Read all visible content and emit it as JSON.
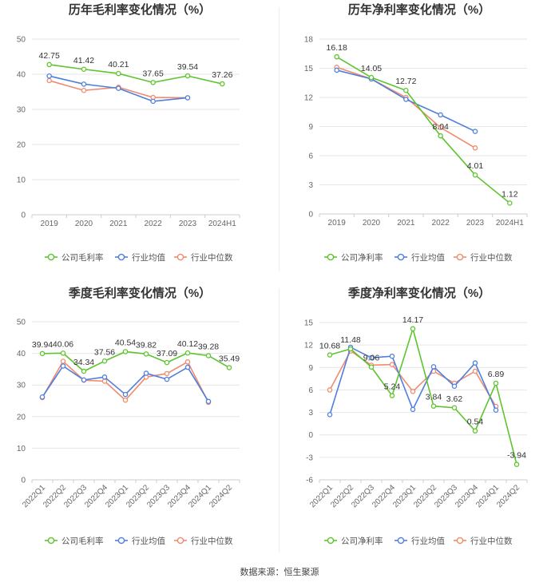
{
  "colors": {
    "company": "#5ec42e",
    "avg": "#4f7fdc",
    "median": "#f08b6e",
    "grid": "#e6e6e6",
    "axis": "#cccccc"
  },
  "legend": {
    "company_gross": "公司毛利率",
    "company_net": "公司净利率",
    "avg": "行业均值",
    "median": "行业中位数"
  },
  "source": "数据来源：恒生聚源",
  "chart_data": [
    {
      "type": "line",
      "title": "历年毛利率变化情况（%）",
      "categories": [
        "2019",
        "2020",
        "2021",
        "2022",
        "2023",
        "2024H1"
      ],
      "ylim": [
        0,
        50
      ],
      "yticks": [
        0,
        10,
        20,
        30,
        40,
        50
      ],
      "rotate_x": false,
      "legend_company": "公司毛利率",
      "series": [
        {
          "name": "公司毛利率",
          "key": "company",
          "values": [
            42.75,
            41.42,
            40.21,
            37.65,
            39.54,
            37.26
          ],
          "labels": [
            "42.75",
            "41.42",
            "40.21",
            "37.65",
            "39.54",
            "37.26"
          ]
        },
        {
          "name": "行业均值",
          "key": "avg",
          "values": [
            39.5,
            37.2,
            36.0,
            32.3,
            33.3,
            null
          ]
        },
        {
          "name": "行业中位数",
          "key": "median",
          "values": [
            38.2,
            35.4,
            36.3,
            33.4,
            33.3,
            null
          ]
        }
      ]
    },
    {
      "type": "line",
      "title": "历年净利率变化情况（%）",
      "categories": [
        "2019",
        "2020",
        "2021",
        "2022",
        "2023",
        "2024H1"
      ],
      "ylim": [
        0,
        18
      ],
      "yticks": [
        0,
        3,
        6,
        9,
        12,
        15,
        18
      ],
      "rotate_x": false,
      "legend_company": "公司净利率",
      "series": [
        {
          "name": "公司净利率",
          "key": "company",
          "values": [
            16.18,
            14.05,
            12.72,
            8.04,
            4.01,
            1.12
          ],
          "labels": [
            "16.18",
            "14.05",
            "12.72",
            "8.04",
            "4.01",
            "1.12"
          ]
        },
        {
          "name": "行业均值",
          "key": "avg",
          "values": [
            14.8,
            13.9,
            11.8,
            10.2,
            8.5,
            null
          ]
        },
        {
          "name": "行业中位数",
          "key": "median",
          "values": [
            15.1,
            13.9,
            12.0,
            8.9,
            6.8,
            null
          ]
        }
      ]
    },
    {
      "type": "line",
      "title": "季度毛利率变化情况（%）",
      "categories": [
        "2022Q1",
        "2022Q2",
        "2022Q3",
        "2022Q4",
        "2023Q1",
        "2023Q2",
        "2023Q3",
        "2023Q4",
        "2024Q1",
        "2024Q2"
      ],
      "ylim": [
        0,
        50
      ],
      "yticks": [
        0,
        10,
        20,
        30,
        40,
        50
      ],
      "rotate_x": true,
      "legend_company": "公司毛利率",
      "series": [
        {
          "name": "公司毛利率",
          "key": "company",
          "values": [
            39.94,
            40.06,
            34.34,
            37.56,
            40.54,
            39.82,
            37.09,
            40.12,
            39.28,
            35.49
          ],
          "labels": [
            "39.94",
            "40.06",
            "34.34",
            "37.56",
            "40.54",
            "39.82",
            "37.09",
            "40.12",
            "39.28",
            "35.49"
          ]
        },
        {
          "name": "行业均值",
          "key": "avg",
          "values": [
            26.2,
            36.0,
            31.6,
            32.5,
            27.0,
            33.7,
            31.8,
            35.6,
            24.8,
            null
          ]
        },
        {
          "name": "行业中位数",
          "key": "median",
          "values": [
            26.0,
            37.5,
            31.5,
            31.2,
            25.2,
            32.5,
            33.6,
            37.3,
            24.5,
            null
          ]
        }
      ]
    },
    {
      "type": "line",
      "title": "季度净利率变化情况（%）",
      "categories": [
        "2022Q1",
        "2022Q2",
        "2022Q3",
        "2022Q4",
        "2023Q1",
        "2023Q2",
        "2023Q3",
        "2023Q4",
        "2024Q1",
        "2024Q2"
      ],
      "ylim": [
        -6,
        15
      ],
      "yticks": [
        -6,
        -3,
        0,
        3,
        6,
        9,
        12,
        15
      ],
      "rotate_x": true,
      "legend_company": "公司净利率",
      "series": [
        {
          "name": "公司净利率",
          "key": "company",
          "values": [
            10.68,
            11.48,
            9.06,
            5.24,
            14.17,
            3.84,
            3.62,
            0.54,
            6.89,
            -3.94
          ],
          "labels": [
            "10.68",
            "11.48",
            "9.06",
            "5.24",
            "14.17",
            "3.84",
            "3.62",
            "0.54",
            "6.89",
            "-3.94"
          ]
        },
        {
          "name": "行业均值",
          "key": "avg",
          "values": [
            2.7,
            11.7,
            10.3,
            10.5,
            3.4,
            9.1,
            6.5,
            9.6,
            3.3,
            null
          ]
        },
        {
          "name": "行业中位数",
          "key": "median",
          "values": [
            6.0,
            11.2,
            9.3,
            9.4,
            5.8,
            8.5,
            6.9,
            8.5,
            3.8,
            null
          ]
        }
      ]
    }
  ]
}
